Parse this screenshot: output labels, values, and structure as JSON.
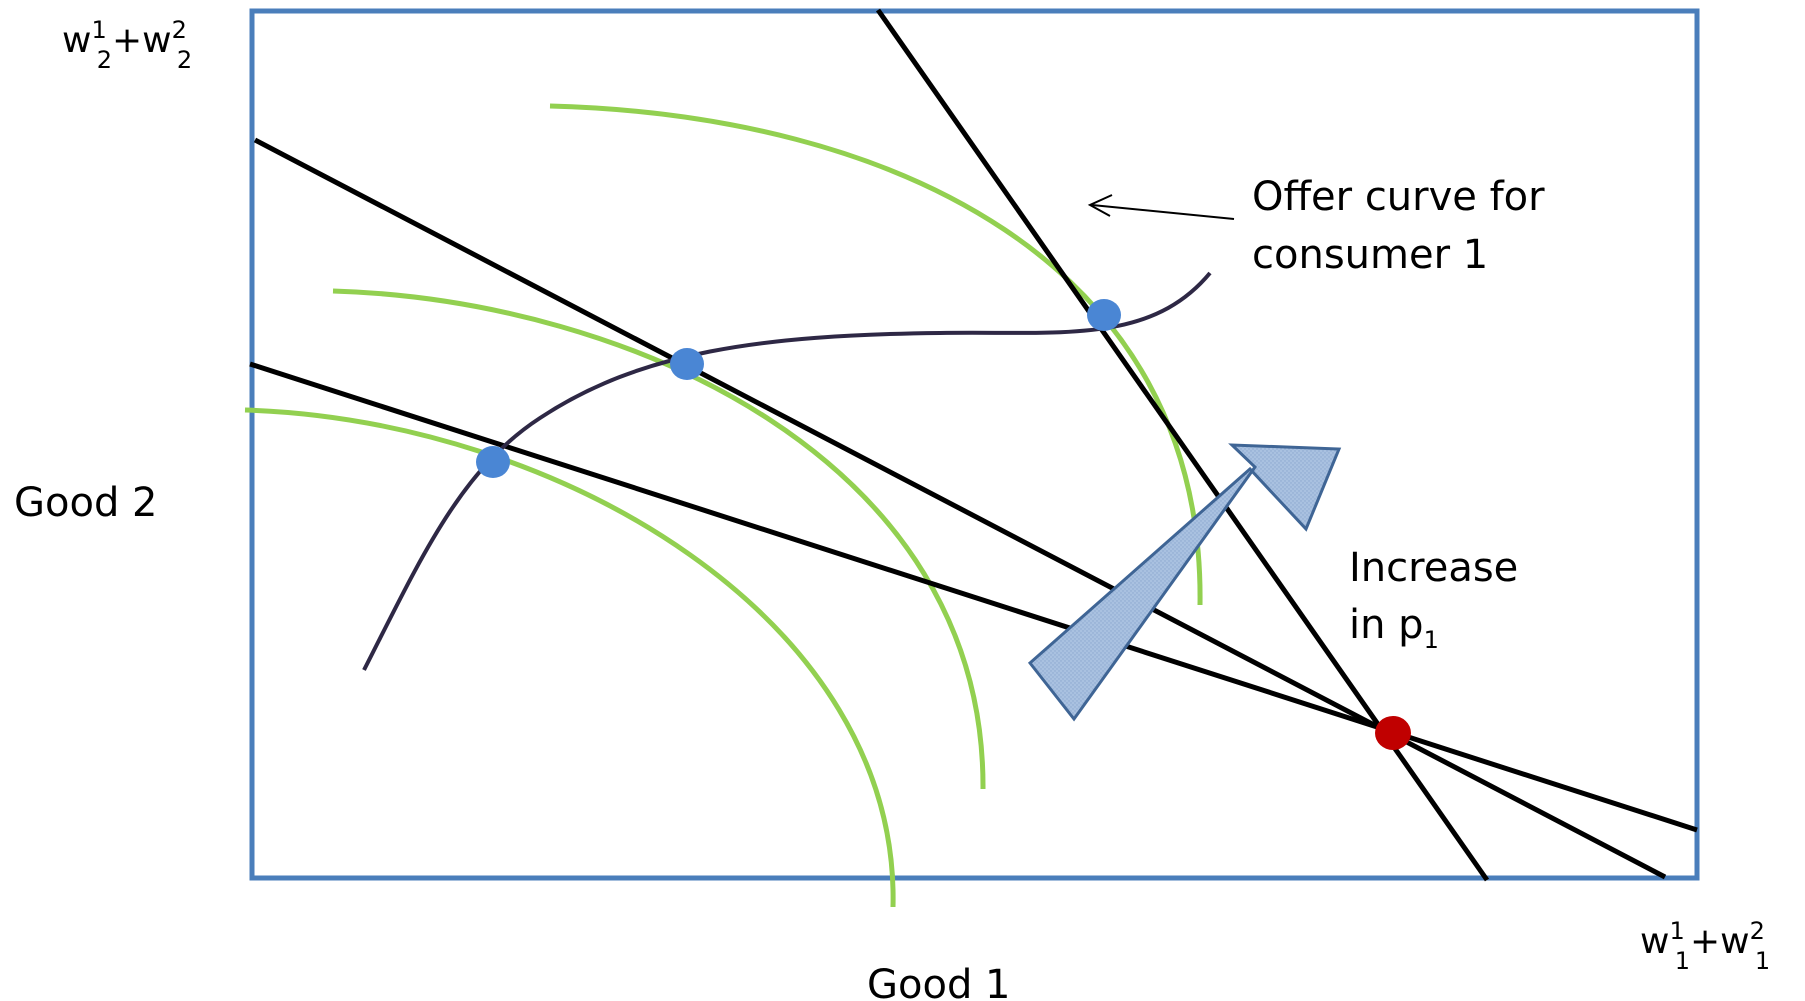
{
  "labels": {
    "y_axis_label": "Good 2",
    "x_axis_label": "Good 1",
    "y_endowment": {
      "w1": "w",
      "sup1": "1",
      "sub1": "2",
      "plus": "+w",
      "sup2": "2",
      "sub2": "2"
    },
    "x_endowment": {
      "w1": "w",
      "sup1": "1",
      "sub1": "1",
      "plus": "+w",
      "sup2": "2",
      "sub2": "1"
    },
    "offer_curve_line1": "Offer curve for",
    "offer_curve_line2": "consumer 1",
    "increase_line1": "Increase",
    "increase_line2_prefix": "in p",
    "increase_line2_sub": "1"
  },
  "colors": {
    "box": "#4a7ebb",
    "budget_lines": "#000000",
    "indifference_curves": "#92d050",
    "offer_curve": "#2e2845",
    "tangency_points": "#4a86d4",
    "endowment_point": "#c00000",
    "arrow_fill": "#a9c1e0",
    "arrow_stroke": "#3f6595"
  },
  "icons": {
    "shift_arrow": "block-arrow-up-right",
    "pointer_arrow": "thin-arrow-left"
  }
}
